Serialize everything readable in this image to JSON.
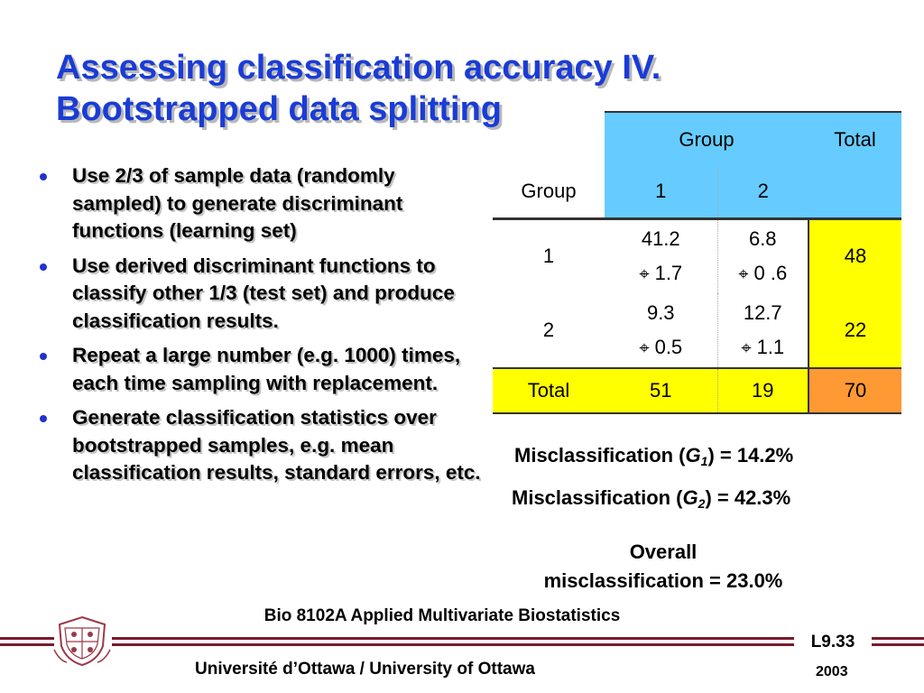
{
  "title": {
    "line1": "Assessing classification accuracy IV.",
    "line2": "Bootstrapped data splitting"
  },
  "bullets": [
    "Use 2/3 of sample data (randomly sampled) to generate discriminant functions (learning set)",
    "Use derived discriminant functions to classify other 1/3 (test set) and produce classification results.",
    "Repeat a large number (e.g. 1000) times, each time sampling with replacement.",
    "Generate classification statistics over bootstrapped samples, e.g. mean classification results, standard errors, etc."
  ],
  "table": {
    "head_group": "Group",
    "head_total": "Total",
    "row_label_header": "Group",
    "col1": "1",
    "col2": "2",
    "pm_symbol": "⌖",
    "rows": [
      {
        "label": "1",
        "v1": "41.2",
        "e1": "1.7",
        "v2": "6.8",
        "e2": "0 .6",
        "total": "48"
      },
      {
        "label": "2",
        "v1": "9.3",
        "e1": "0.5",
        "v2": "12.7",
        "e2": "1.1",
        "total": "22"
      }
    ],
    "total_row": {
      "label": "Total",
      "t1": "51",
      "t2": "19",
      "grand": "70"
    },
    "colors": {
      "header": "#66ccff",
      "total": "#ffff00",
      "grand": "#ff9933"
    }
  },
  "misclassification": {
    "g1_prefix": "Misclassification (",
    "g1_var": "G",
    "g1_sub": "1",
    "g1_suffix": ") = 14.2%",
    "g2_prefix": "Misclassification (",
    "g2_var": "G",
    "g2_sub": "2",
    "g2_suffix": ") = 42.3%",
    "overall_line1": "Overall",
    "overall_line2": "misclassification = 23.0%"
  },
  "footer": {
    "course": "Bio 8102A Applied Multivariate Biostatistics",
    "lecture": "L9.33",
    "university": "Université d’Ottawa / University of Ottawa",
    "year": "2003",
    "bar_color": "#7a1a2e"
  }
}
